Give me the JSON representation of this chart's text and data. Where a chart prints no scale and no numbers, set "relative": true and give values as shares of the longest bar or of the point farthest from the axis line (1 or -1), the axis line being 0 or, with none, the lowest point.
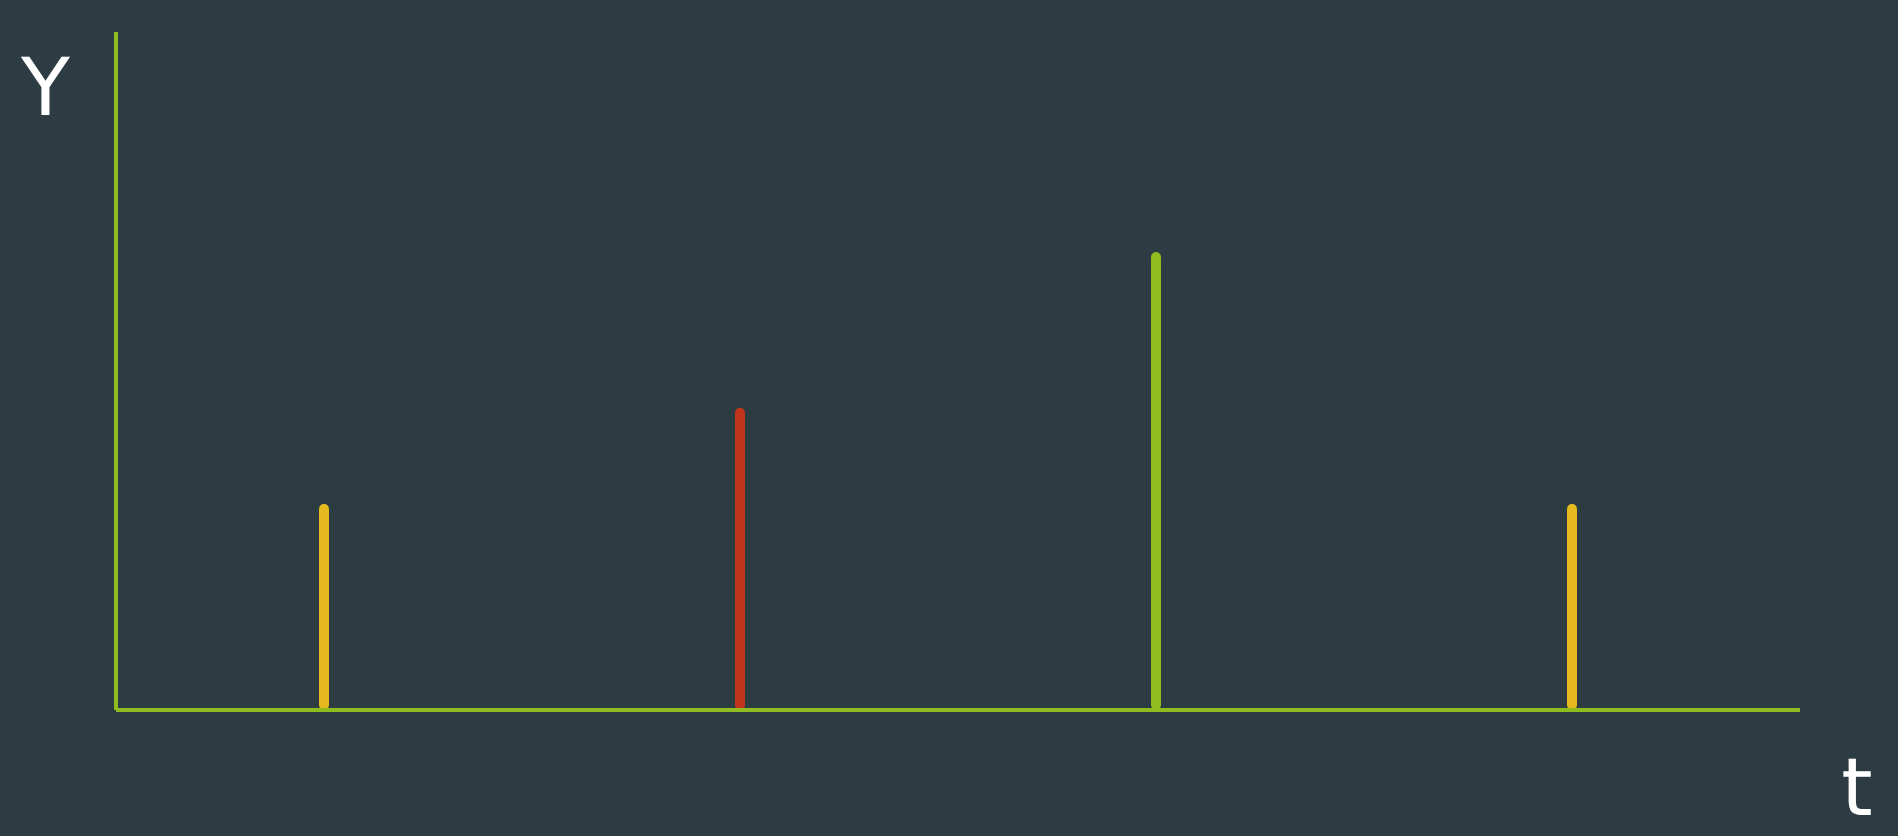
{
  "chart_data": {
    "type": "bar",
    "relative": true,
    "xlabel": "t",
    "ylabel": "Y",
    "grid": false,
    "categories": [
      null,
      null,
      null,
      null
    ],
    "values": [
      0.45,
      0.66,
      1,
      0.45
    ],
    "colors": [
      "#e6b91e",
      "#c0341d",
      "#8fbc1e",
      "#e6b91e"
    ]
  }
}
